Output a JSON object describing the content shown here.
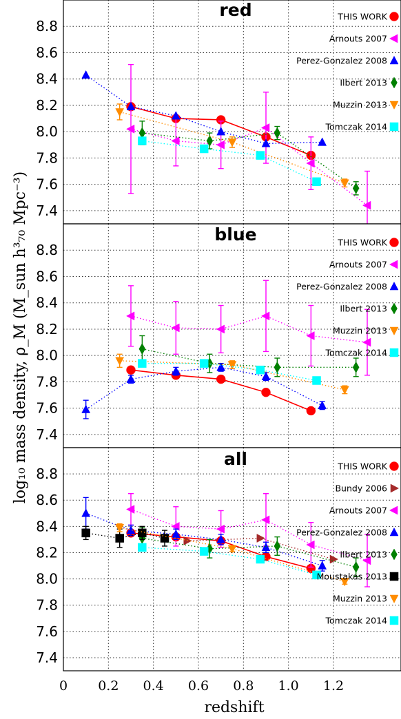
{
  "chart_data": {
    "type": "scatter",
    "xlabel": "redshift",
    "ylabel": "log₁₀ mass density, ρ_M  (M_sun h³₇₀ Mpc⁻³)",
    "xlim": [
      0,
      1.5
    ],
    "ylim": [
      7.3,
      9.0
    ],
    "x_ticks": [
      "0",
      "0.2",
      "0.4",
      "0.6",
      "0.8",
      "1.0",
      "1.2"
    ],
    "y_ticks": [
      "7.4",
      "7.6",
      "7.8",
      "8.0",
      "8.2",
      "8.4",
      "8.6",
      "8.8"
    ],
    "grid": true,
    "legend_position": "right",
    "colors": {
      "this_work": "#ff0000",
      "bundy": "#a52a2a",
      "arnouts": "#ff00ff",
      "perez": "#0000ff",
      "ilbert": "#008000",
      "moustakas": "#000000",
      "muzzin": "#ff8c00",
      "tomczak": "#00ffff"
    },
    "panels": [
      {
        "title": "red",
        "series": [
          {
            "name": "THIS WORK",
            "key": "this_work",
            "marker": "circle",
            "line": "solid",
            "x": [
              0.3,
              0.5,
              0.7,
              0.9,
              1.1
            ],
            "y": [
              8.19,
              8.1,
              8.09,
              7.96,
              7.82
            ]
          },
          {
            "name": "Arnouts 2007",
            "key": "arnouts",
            "marker": "tri-left",
            "line": "dotted",
            "x": [
              0.3,
              0.5,
              0.7,
              0.9,
              1.1,
              1.35
            ],
            "y": [
              8.02,
              7.93,
              7.9,
              8.03,
              7.76,
              7.44
            ],
            "yerr": [
              0.49,
              0.19,
              0.18,
              0.27,
              0.2,
              0.26
            ]
          },
          {
            "name": "Perez-Gonzalez 2008",
            "key": "perez",
            "marker": "tri-up",
            "line": "dotted",
            "x": [
              0.1,
              0.3,
              0.5,
              0.7,
              0.9,
              1.15
            ],
            "y": [
              8.43,
              8.19,
              8.12,
              8.0,
              7.91,
              7.92
            ]
          },
          {
            "name": "Ilbert 2013",
            "key": "ilbert",
            "marker": "diamond",
            "line": "dotted",
            "x": [
              0.35,
              0.65,
              0.95,
              1.3
            ],
            "y": [
              7.99,
              7.93,
              7.99,
              7.57
            ],
            "yerr": [
              0.09,
              0.06,
              0.05,
              0.05
            ]
          },
          {
            "name": "Muzzin 2013",
            "key": "muzzin",
            "marker": "tri-down",
            "line": "dotted",
            "x": [
              0.25,
              0.75,
              1.25
            ],
            "y": [
              8.15,
              7.92,
              7.61
            ],
            "yerr": [
              0.06,
              0.04,
              0.03
            ]
          },
          {
            "name": "Tomczak 2014",
            "key": "tomczak",
            "marker": "square",
            "line": "dotted",
            "x": [
              0.35,
              0.625,
              0.875,
              1.125
            ],
            "y": [
              7.93,
              7.87,
              7.82,
              7.62
            ]
          }
        ]
      },
      {
        "title": "blue",
        "series": [
          {
            "name": "THIS WORK",
            "key": "this_work",
            "marker": "circle",
            "line": "solid",
            "x": [
              0.3,
              0.5,
              0.7,
              0.9,
              1.1
            ],
            "y": [
              7.89,
              7.85,
              7.82,
              7.72,
              7.58
            ]
          },
          {
            "name": "Arnouts 2007",
            "key": "arnouts",
            "marker": "tri-left",
            "line": "dotted",
            "x": [
              0.3,
              0.5,
              0.7,
              0.9,
              1.1,
              1.35
            ],
            "y": [
              8.3,
              8.21,
              8.2,
              8.3,
              8.15,
              8.1
            ],
            "yerr": [
              0.23,
              0.2,
              0.18,
              0.27,
              0.23,
              0.25
            ]
          },
          {
            "name": "Perez-Gonzalez 2008",
            "key": "perez",
            "marker": "tri-up",
            "line": "dotted",
            "x": [
              0.1,
              0.3,
              0.5,
              0.7,
              0.9,
              1.15
            ],
            "y": [
              7.59,
              7.82,
              7.88,
              7.91,
              7.84,
              7.62
            ],
            "yerr": [
              0.07,
              0.03,
              0.03,
              0.03,
              0.03,
              0.03
            ]
          },
          {
            "name": "Ilbert 2013",
            "key": "ilbert",
            "marker": "diamond",
            "line": "dotted",
            "x": [
              0.35,
              0.65,
              0.95,
              1.3
            ],
            "y": [
              8.05,
              7.94,
              7.91,
              7.91
            ],
            "yerr": [
              0.1,
              0.07,
              0.07,
              0.07
            ]
          },
          {
            "name": "Muzzin 2013",
            "key": "muzzin",
            "marker": "tri-down",
            "line": "dotted",
            "x": [
              0.25,
              0.75,
              1.25
            ],
            "y": [
              7.96,
              7.93,
              7.74
            ],
            "yerr": [
              0.05,
              0.03,
              0.03
            ]
          },
          {
            "name": "Tomczak 2014",
            "key": "tomczak",
            "marker": "square",
            "line": "dotted",
            "x": [
              0.35,
              0.625,
              0.875,
              1.125
            ],
            "y": [
              7.94,
              7.94,
              7.89,
              7.81
            ]
          }
        ]
      },
      {
        "title": "all",
        "series": [
          {
            "name": "THIS WORK",
            "key": "this_work",
            "marker": "circle",
            "line": "solid",
            "x": [
              0.3,
              0.5,
              0.7,
              0.9,
              1.1
            ],
            "y": [
              8.35,
              8.32,
              8.29,
              8.17,
              8.08
            ]
          },
          {
            "name": "Bundy 2006",
            "key": "bundy",
            "marker": "tri-right",
            "line": "dotted",
            "x": [
              0.55,
              0.875,
              1.2
            ],
            "y": [
              8.29,
              8.31,
              8.15
            ]
          },
          {
            "name": "Arnouts 2007",
            "key": "arnouts",
            "marker": "tri-left",
            "line": "dotted",
            "x": [
              0.3,
              0.5,
              0.7,
              0.9,
              1.1,
              1.35
            ],
            "y": [
              8.53,
              8.4,
              8.38,
              8.45,
              8.26,
              8.14
            ],
            "yerr": [
              0.12,
              0.15,
              0.14,
              0.2,
              0.17,
              0.2
            ]
          },
          {
            "name": "Perez-Gonzalez 2008",
            "key": "perez",
            "marker": "tri-up",
            "line": "dotted",
            "x": [
              0.1,
              0.3,
              0.5,
              0.7,
              0.9,
              1.15
            ],
            "y": [
              8.5,
              8.37,
              8.34,
              8.3,
              8.24,
              8.1
            ],
            "yerr": [
              0.12,
              0.04,
              0.04,
              0.04,
              0.04,
              0.04
            ]
          },
          {
            "name": "Ilbert 2013",
            "key": "ilbert",
            "marker": "diamond",
            "line": "dotted",
            "x": [
              0.35,
              0.65,
              0.95,
              1.3
            ],
            "y": [
              8.31,
              8.23,
              8.25,
              8.09
            ],
            "yerr": [
              0.08,
              0.07,
              0.07,
              0.07
            ]
          },
          {
            "name": "Moustakas 2013",
            "key": "moustakas",
            "marker": "square",
            "line": "dotted",
            "x": [
              0.1,
              0.25,
              0.35,
              0.45
            ],
            "y": [
              8.35,
              8.31,
              8.35,
              8.31
            ],
            "yerr": [
              0.05,
              0.07,
              0.05,
              0.06
            ]
          },
          {
            "name": "Muzzin 2013",
            "key": "muzzin",
            "marker": "tri-down",
            "line": "dotted",
            "x": [
              0.25,
              0.75,
              1.25
            ],
            "y": [
              8.39,
              8.23,
              7.98
            ],
            "yerr": [
              0.03,
              0.02,
              0.02
            ]
          },
          {
            "name": "Tomczak 2014",
            "key": "tomczak",
            "marker": "square",
            "line": "dotted",
            "x": [
              0.35,
              0.625,
              0.875,
              1.125
            ],
            "y": [
              8.24,
              8.21,
              8.15,
              8.03
            ]
          }
        ]
      }
    ]
  }
}
